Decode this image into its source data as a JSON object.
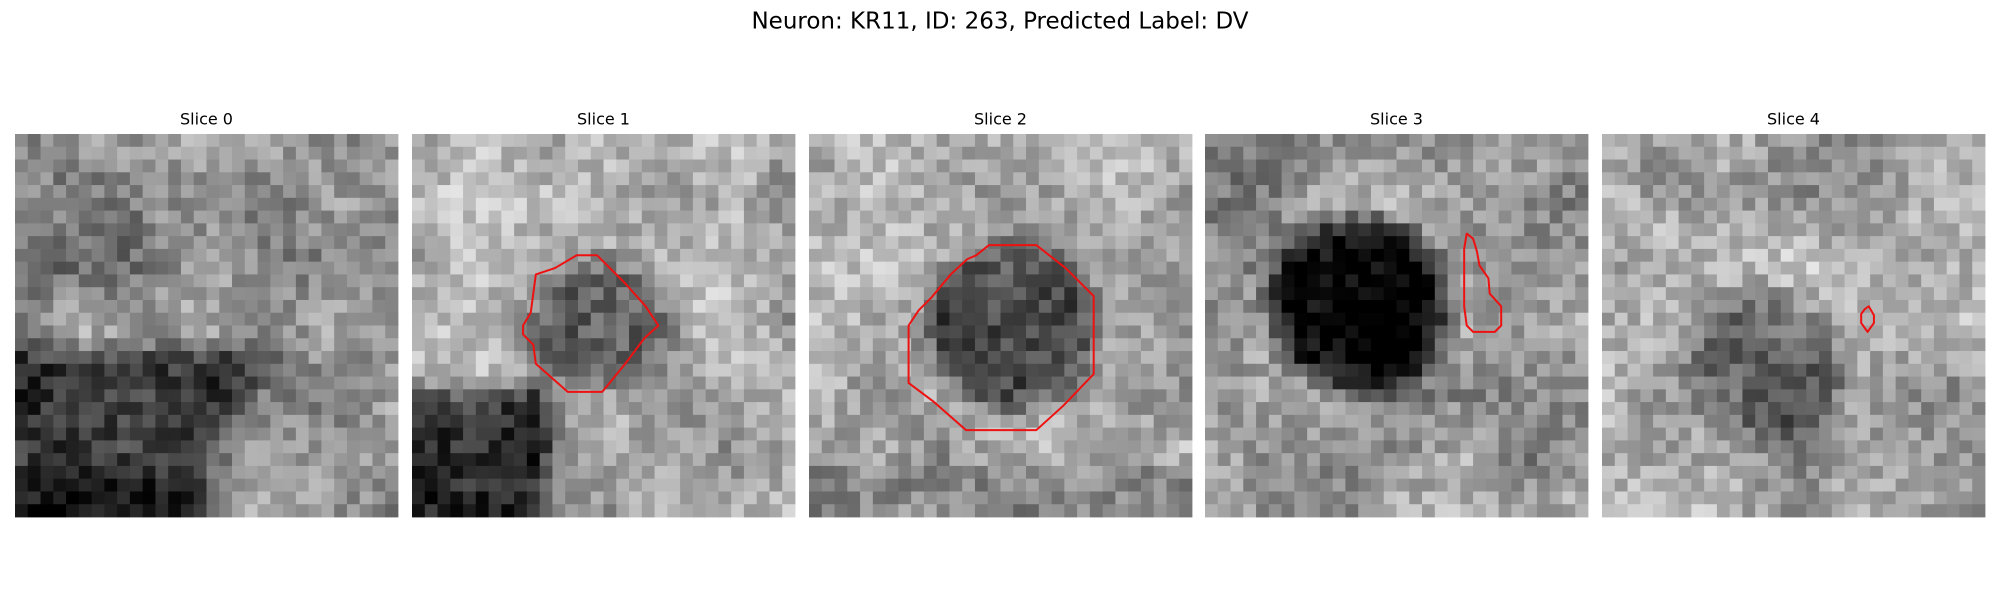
{
  "title": "Neuron: KR11, ID: 263, Predicted Label: DV",
  "panels": [
    {
      "title": "Slice 0"
    },
    {
      "title": "Slice 1"
    },
    {
      "title": "Slice 2"
    },
    {
      "title": "Slice 3"
    },
    {
      "title": "Slice 4"
    }
  ]
}
